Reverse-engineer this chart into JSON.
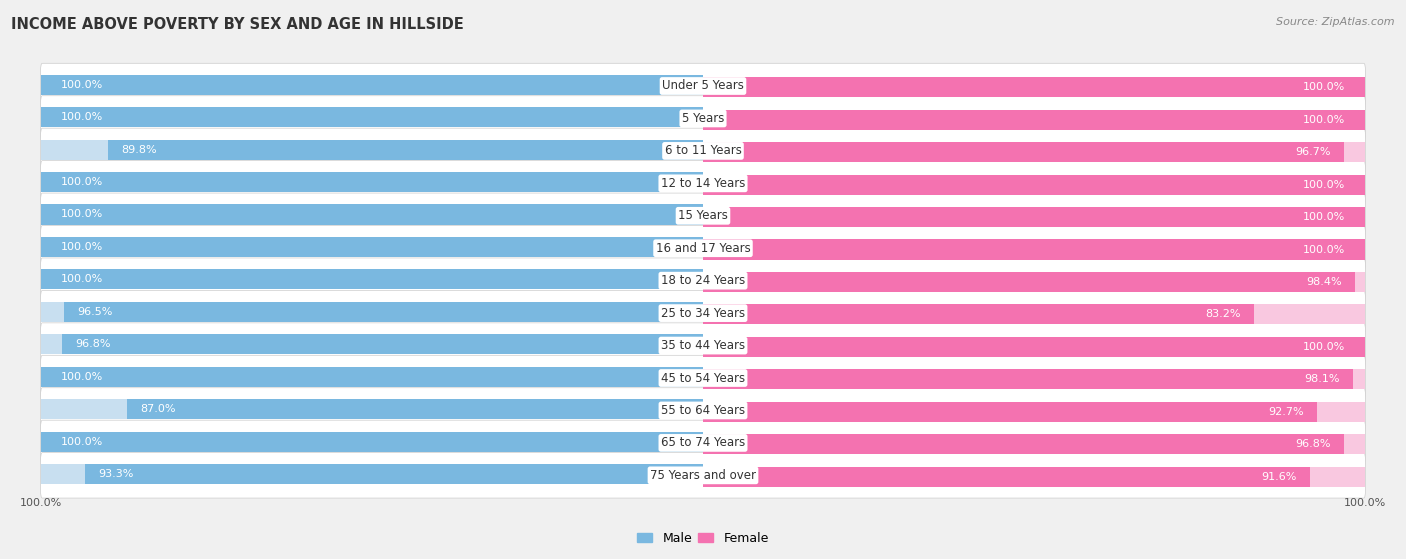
{
  "title": "INCOME ABOVE POVERTY BY SEX AND AGE IN HILLSIDE",
  "source": "Source: ZipAtlas.com",
  "categories": [
    "Under 5 Years",
    "5 Years",
    "6 to 11 Years",
    "12 to 14 Years",
    "15 Years",
    "16 and 17 Years",
    "18 to 24 Years",
    "25 to 34 Years",
    "35 to 44 Years",
    "45 to 54 Years",
    "55 to 64 Years",
    "65 to 74 Years",
    "75 Years and over"
  ],
  "male_values": [
    100.0,
    100.0,
    89.8,
    100.0,
    100.0,
    100.0,
    100.0,
    96.5,
    96.8,
    100.0,
    87.0,
    100.0,
    93.3
  ],
  "female_values": [
    100.0,
    100.0,
    96.7,
    100.0,
    100.0,
    100.0,
    98.4,
    83.2,
    100.0,
    98.1,
    92.7,
    96.8,
    91.6
  ],
  "male_color": "#7ab8e0",
  "female_color": "#f472b0",
  "male_label": "Male",
  "female_label": "Female",
  "background_color": "#f0f0f0",
  "bar_background_male": "#c8dff0",
  "bar_background_female": "#f9c8e0",
  "row_bg_color": "#e8e8e8",
  "title_fontsize": 10.5,
  "label_fontsize": 8.5,
  "value_fontsize": 8.0,
  "legend_fontsize": 9,
  "source_fontsize": 8
}
